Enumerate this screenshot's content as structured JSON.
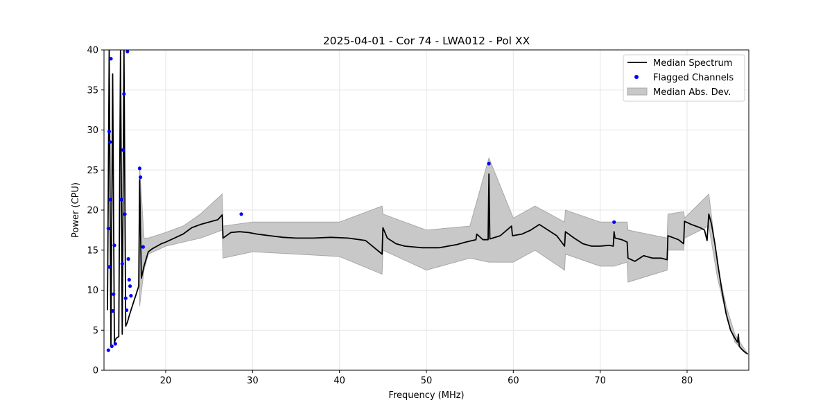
{
  "chart_data": {
    "type": "line",
    "title": "2025-04-01 - Cor 74 - LWA012 - Pol XX",
    "xlabel": "Frequency (MHz)",
    "ylabel": "Power (CPU)",
    "xlim": [
      12.9,
      87.1
    ],
    "ylim": [
      0,
      40
    ],
    "xticks": [
      20,
      30,
      40,
      50,
      60,
      70,
      80
    ],
    "yticks": [
      0,
      5,
      10,
      15,
      20,
      25,
      30,
      35,
      40
    ],
    "grid": true,
    "legend": {
      "placement": "top-right",
      "entries": [
        "Median Spectrum",
        "Flagged Channels",
        "Median Abs. Dev."
      ]
    },
    "colors": {
      "median": "#000000",
      "flagged": "#0000ff",
      "mad": "#c8c8c8",
      "mad_edge": "#a8a8a8"
    },
    "series": [
      {
        "name": "Median Spectrum",
        "x": [
          13.3,
          13.5,
          13.7,
          13.9,
          14.1,
          14.3,
          14.6,
          14.8,
          15.0,
          15.2,
          15.4,
          15.6,
          15.8,
          16.0,
          16.3,
          16.6,
          16.9,
          17.0,
          17.2,
          17.5,
          18.0,
          18.5,
          19.0,
          19.5,
          20.0,
          21.0,
          22.0,
          23.0,
          24.0,
          25.0,
          26.0,
          26.5,
          26.6,
          27.5,
          28.5,
          29.5,
          30.5,
          32.0,
          33.5,
          35.0,
          37.0,
          39.0,
          41.0,
          43.0,
          44.9,
          45.0,
          45.5,
          46.5,
          47.5,
          48.5,
          49.5,
          50.5,
          51.5,
          52.5,
          53.5,
          54.5,
          55.7,
          55.8,
          56.5,
          57.1,
          57.2,
          57.3,
          58.5,
          59.8,
          59.9,
          61.0,
          62.0,
          63.0,
          64.0,
          65.0,
          65.9,
          66.0,
          67.0,
          68.0,
          69.0,
          70.0,
          71.0,
          71.5,
          71.6,
          71.7,
          72.5,
          73.1,
          73.2,
          74.0,
          75.0,
          76.0,
          77.0,
          77.7,
          77.8,
          79.0,
          79.6,
          79.7,
          80.5,
          81.5,
          82.0,
          82.3,
          82.5,
          82.8,
          83.2,
          83.6,
          84.0,
          84.5,
          85.0,
          85.5,
          85.8,
          85.9,
          86.0,
          86.3,
          86.6,
          87.0
        ],
        "y": [
          7.5,
          40.0,
          3.0,
          37.0,
          3.5,
          4.0,
          4.2,
          40.0,
          4.5,
          40.0,
          5.5,
          6.0,
          6.8,
          7.5,
          8.5,
          9.5,
          10.5,
          23.8,
          11.5,
          13.0,
          14.8,
          15.2,
          15.5,
          15.8,
          16.0,
          16.5,
          17.0,
          17.8,
          18.2,
          18.5,
          18.8,
          19.4,
          16.5,
          17.2,
          17.3,
          17.2,
          17.0,
          16.8,
          16.6,
          16.5,
          16.5,
          16.6,
          16.5,
          16.2,
          14.5,
          17.8,
          16.5,
          15.8,
          15.5,
          15.4,
          15.3,
          15.3,
          15.3,
          15.5,
          15.7,
          16.0,
          16.3,
          17.0,
          16.3,
          16.3,
          24.5,
          16.4,
          16.8,
          18.0,
          16.8,
          17.0,
          17.5,
          18.2,
          17.5,
          16.8,
          15.5,
          17.3,
          16.5,
          15.8,
          15.5,
          15.5,
          15.6,
          15.5,
          17.3,
          16.5,
          16.3,
          16.0,
          14.0,
          13.6,
          14.3,
          14.0,
          14.0,
          13.8,
          16.8,
          16.3,
          15.8,
          18.6,
          18.2,
          17.8,
          17.5,
          16.2,
          19.5,
          18.3,
          15.8,
          12.8,
          10.0,
          7.0,
          5.0,
          4.0,
          3.5,
          4.5,
          3.0,
          2.6,
          2.3,
          2.0
        ]
      },
      {
        "name": "Median Abs. Dev.",
        "x": [
          17.0,
          17.5,
          18.0,
          20.0,
          22.0,
          24.0,
          26.5,
          26.6,
          30.0,
          35.0,
          40.0,
          44.9,
          45.0,
          50.0,
          55.0,
          57.2,
          60.0,
          62.5,
          65.9,
          66.0,
          70.0,
          71.6,
          73.1,
          73.2,
          77.7,
          77.8,
          79.6,
          79.7,
          82.5,
          83.5,
          84.5,
          85.5,
          87.0
        ],
        "upper": [
          25.5,
          16.5,
          16.5,
          17.2,
          18.0,
          19.5,
          22.0,
          18.0,
          18.5,
          18.5,
          18.5,
          20.5,
          19.5,
          17.5,
          18.0,
          26.5,
          19.0,
          20.5,
          18.5,
          20.0,
          18.5,
          18.5,
          18.5,
          17.5,
          16.5,
          19.5,
          19.8,
          19.0,
          22.0,
          13.0,
          8.0,
          4.5,
          2.0
        ],
        "lower": [
          8.0,
          12.5,
          14.5,
          15.5,
          16.0,
          16.5,
          17.5,
          14.0,
          14.8,
          14.5,
          14.2,
          12.0,
          15.0,
          12.5,
          14.0,
          13.5,
          13.5,
          15.0,
          12.5,
          14.5,
          13.0,
          13.0,
          13.5,
          11.0,
          12.5,
          15.0,
          15.0,
          16.5,
          18.0,
          11.5,
          7.0,
          3.5,
          2.0
        ]
      },
      {
        "name": "Flagged Channels",
        "x": [
          13.4,
          13.4,
          13.5,
          13.5,
          13.6,
          13.6,
          13.7,
          13.8,
          13.9,
          14.0,
          14.1,
          14.2,
          14.9,
          15.0,
          15.1,
          15.2,
          15.3,
          15.4,
          15.5,
          15.6,
          15.7,
          15.8,
          15.9,
          16.0,
          17.0,
          17.1,
          17.4,
          28.7,
          57.2,
          71.6
        ],
        "y": [
          2.5,
          17.7,
          29.8,
          12.9,
          21.3,
          28.5,
          38.9,
          3.0,
          7.4,
          9.5,
          15.6,
          3.3,
          21.3,
          13.3,
          27.5,
          34.5,
          19.5,
          9.0,
          7.5,
          39.8,
          13.9,
          11.3,
          10.5,
          9.3,
          25.2,
          24.1,
          15.4,
          19.5,
          25.8,
          18.5
        ]
      }
    ]
  }
}
